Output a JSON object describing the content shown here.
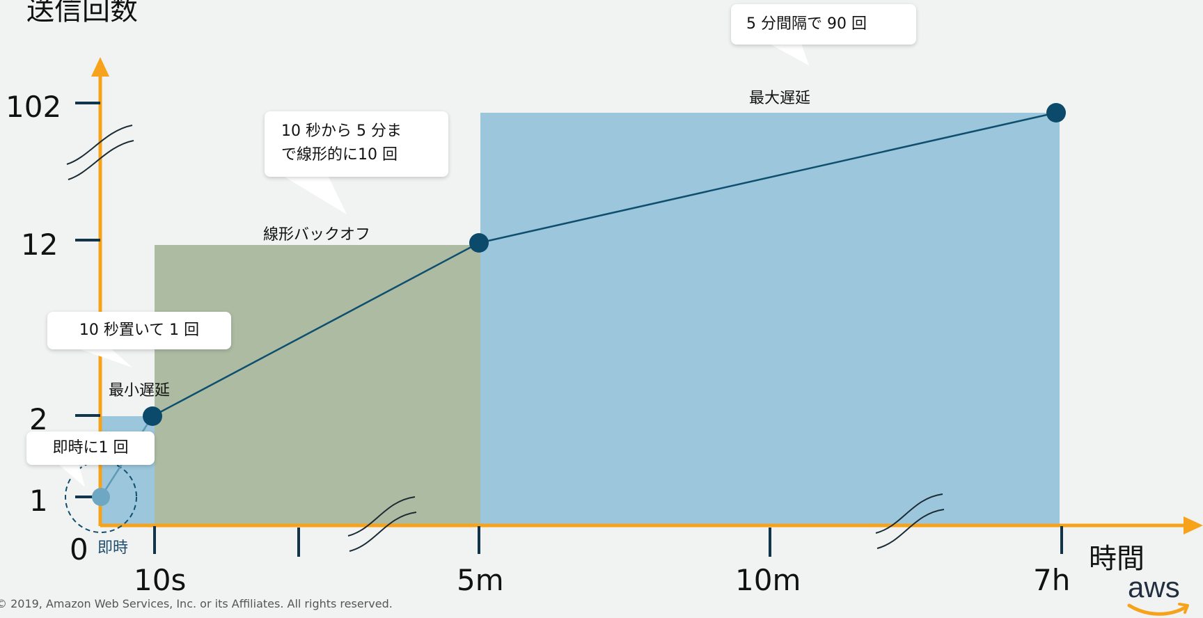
{
  "y_axis": {
    "title": "送信回数",
    "ticks": [
      "102",
      "12",
      "2",
      "1",
      "0"
    ]
  },
  "x_axis": {
    "title": "時間",
    "ticks": [
      "10s",
      "5m",
      "10m",
      "7h"
    ],
    "origin_label": "即時"
  },
  "regions": {
    "min_delay": "最小遅延",
    "linear_backoff": "線形バックオフ",
    "max_delay": "最大遅延"
  },
  "callouts": {
    "immediate": "即時に1 回",
    "ten_sec": "10 秒置いて 1 回",
    "linear_line1": "10 秒から 5 分ま",
    "linear_line2": "で線形的に10 回",
    "five_min": "5 分間隔で 90 回"
  },
  "footer": "© 2019, Amazon Web Services, Inc. or its Affiliates. All rights reserved.",
  "logo_text": "aws",
  "colors": {
    "axis": "#f7a21b",
    "blue_region": "#9bc6db",
    "green_region": "#adbba3",
    "line": "#0e4f6e",
    "dot": "#0b4a6b"
  },
  "chart_data": {
    "type": "line",
    "x": [
      "即時",
      "10s",
      "5m",
      "7h"
    ],
    "y": [
      1,
      2,
      12,
      102
    ],
    "y_ticks": [
      0,
      1,
      2,
      12,
      102
    ],
    "x_ticks": [
      "10s",
      "5m",
      "10m",
      "7h"
    ]
  }
}
